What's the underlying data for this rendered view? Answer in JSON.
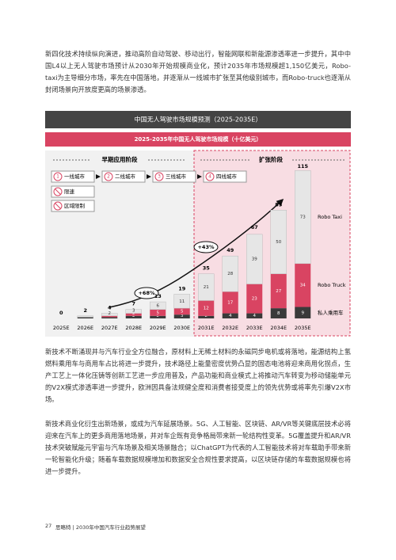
{
  "body": {
    "paragraphs": [
      "新四化技术持续纵向演进，推动高阶自动驾驶、移动出行，智能网联和新能源渗透率进一步提升，其中中国L4以上无人驾驶市场预计从2030年开始规模商业化，预计2035年市场规模超1,150亿美元，Robo-taxi为主导细分市场，率先在中国落地，并逐渐从一线城市扩张至其他级别城市，而Robo-truck也逐渐从封闭场景向开放度更高的场景渗透。",
      "新技术不断涌现并与汽车行业全方位融合，原材料上无稀土材料的永磁同步电机或将落地，能源结构上氢燃料乘用车与商用车占比将进一步提升，技术路径上能量密度优势凸显的固态电池将迎来商用化拐点，生产工艺上一体化压铸等创新工艺进一步应用普及，产品功能和商业模式上将推动汽车转变为移动储能单元的V2X模式渗透率进一步提升，欧洲因具备法规健全度和消费者接受度上的领先优势或将率先引爆V2X市场。",
      "新技术商业化衍生出新场景，或成为汽车延展场景。5G、人工智能、区块链、AR/VR等关键底层技术必将迎来在汽车上的更多商用落地场景，并对车企既有竞争格局带来新一轮结构性变革。5G覆盖提升和AR/VR技术突破赋能元宇宙与汽车场景及相关场景融合；以ChatGPT为代表的人工智能技术将对车载助手带来新一轮智能化升级；随着车载数据规模增加和数据安全合规性要求提高，以区块链存储的车载数据规模也将进一步提升。"
    ]
  },
  "chart_data": {
    "type": "bar",
    "stacked": true,
    "title": "中国无人驾驶市场规模预测（2025-2035E）",
    "subtitle": "2025-2035年中国无人驾驶市场规模（十亿美元）",
    "categories": [
      "2025E",
      "2026E",
      "2027E",
      "2028E",
      "2029E",
      "2030E",
      "2031E",
      "2032E",
      "2033E",
      "2034E",
      "2035E"
    ],
    "series": [
      {
        "name": "私人乘用车",
        "color": "#3a3a3a",
        "values": [
          0,
          1,
          1,
          2,
          2,
          3,
          2,
          4,
          4,
          8,
          9
        ]
      },
      {
        "name": "Robo Truck",
        "color": "#d94462",
        "values": [
          0,
          0,
          1,
          2,
          5,
          5,
          12,
          17,
          23,
          27,
          34
        ]
      },
      {
        "name": "Robo Taxi",
        "color": "#e6e6e6",
        "values": [
          0,
          1,
          2,
          3,
          6,
          11,
          21,
          28,
          39,
          50,
          73
        ]
      }
    ],
    "totals": [
      0,
      2,
      4,
      7,
      13,
      19,
      35,
      49,
      67,
      85,
      115
    ],
    "phases": [
      "早期应用阶段",
      "扩张阶段"
    ],
    "stage_legend": [
      {
        "step": 1,
        "label": "一线城市"
      },
      {
        "step": 2,
        "label": "二线城市"
      },
      {
        "step": 3,
        "label": "三线城市"
      },
      {
        "step": 4,
        "label": "四线城市"
      }
    ],
    "constraints": [
      "限速",
      "区域限制"
    ],
    "annotations": [
      "+68%",
      "+43%"
    ]
  },
  "footer": {
    "page": "27",
    "text": "思略特 | 2030年中国汽车行业趋势展望"
  }
}
